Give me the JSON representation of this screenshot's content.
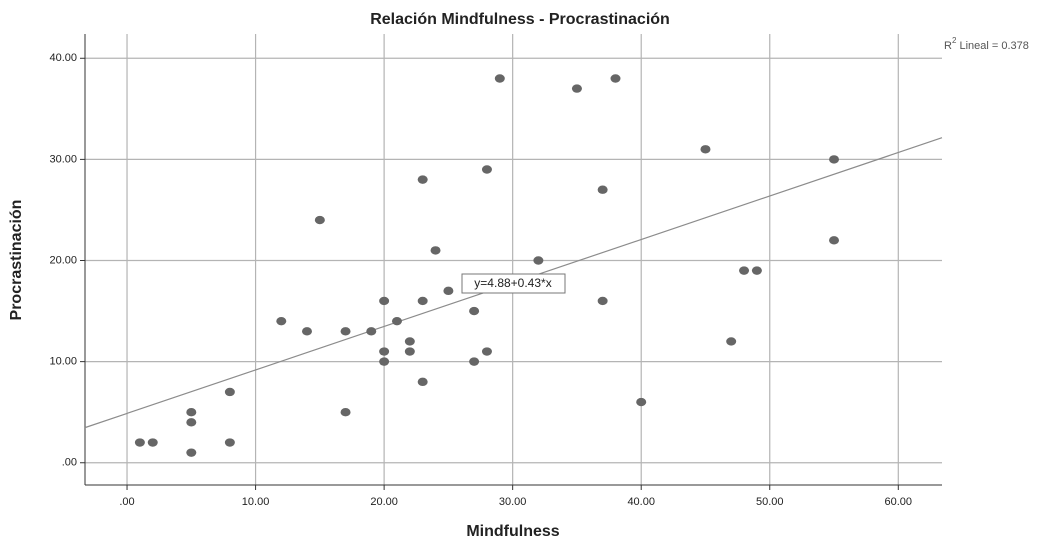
{
  "chart_data": {
    "type": "scatter",
    "title": "Relación Mindfulness - Procrastinación",
    "x_label": "Mindfulness",
    "y_label": "Procrastinación",
    "x": [
      1,
      2,
      5,
      5,
      5,
      8,
      8,
      12,
      14,
      15,
      17,
      17,
      19,
      20,
      20,
      20,
      21,
      22,
      22,
      23,
      23,
      23,
      24,
      25,
      27,
      27,
      28,
      28,
      29,
      32,
      35,
      37,
      37,
      38,
      40,
      45,
      47,
      48,
      49,
      55,
      55
    ],
    "values": [
      2,
      2,
      5,
      4,
      1,
      7,
      2,
      14,
      13,
      24,
      13,
      5,
      13,
      16,
      11,
      10,
      14,
      12,
      11,
      28,
      16,
      8,
      21,
      17,
      15,
      10,
      29,
      11,
      38,
      20,
      37,
      27,
      16,
      38,
      6,
      31,
      12,
      19,
      19,
      30,
      22
    ],
    "color": "#666666",
    "xlim": [
      -3.27,
      63.4
    ],
    "ylim": [
      -2.2,
      42.4
    ],
    "xticks": [
      {
        "value": 0,
        "label": ".00"
      },
      {
        "value": 10,
        "label": "10.00"
      },
      {
        "value": 20,
        "label": "20.00"
      },
      {
        "value": 30,
        "label": "30.00"
      },
      {
        "value": 40,
        "label": "40.00"
      },
      {
        "value": 50,
        "label": "50.00"
      },
      {
        "value": 60,
        "label": "60.00"
      }
    ],
    "yticks": [
      {
        "value": 0,
        "label": ".00"
      },
      {
        "value": 10,
        "label": "10.00"
      },
      {
        "value": 20,
        "label": "20.00"
      },
      {
        "value": 30,
        "label": "30.00"
      },
      {
        "value": 40,
        "label": "40.00"
      }
    ],
    "grid": true,
    "fit": {
      "intercept": 4.88,
      "slope": 0.43,
      "label": "y=4.88+0.43*x",
      "color": "#8c8c8c"
    },
    "r2": {
      "base": "R",
      "sup": "2",
      "text": " Lineal = 0.378"
    }
  }
}
